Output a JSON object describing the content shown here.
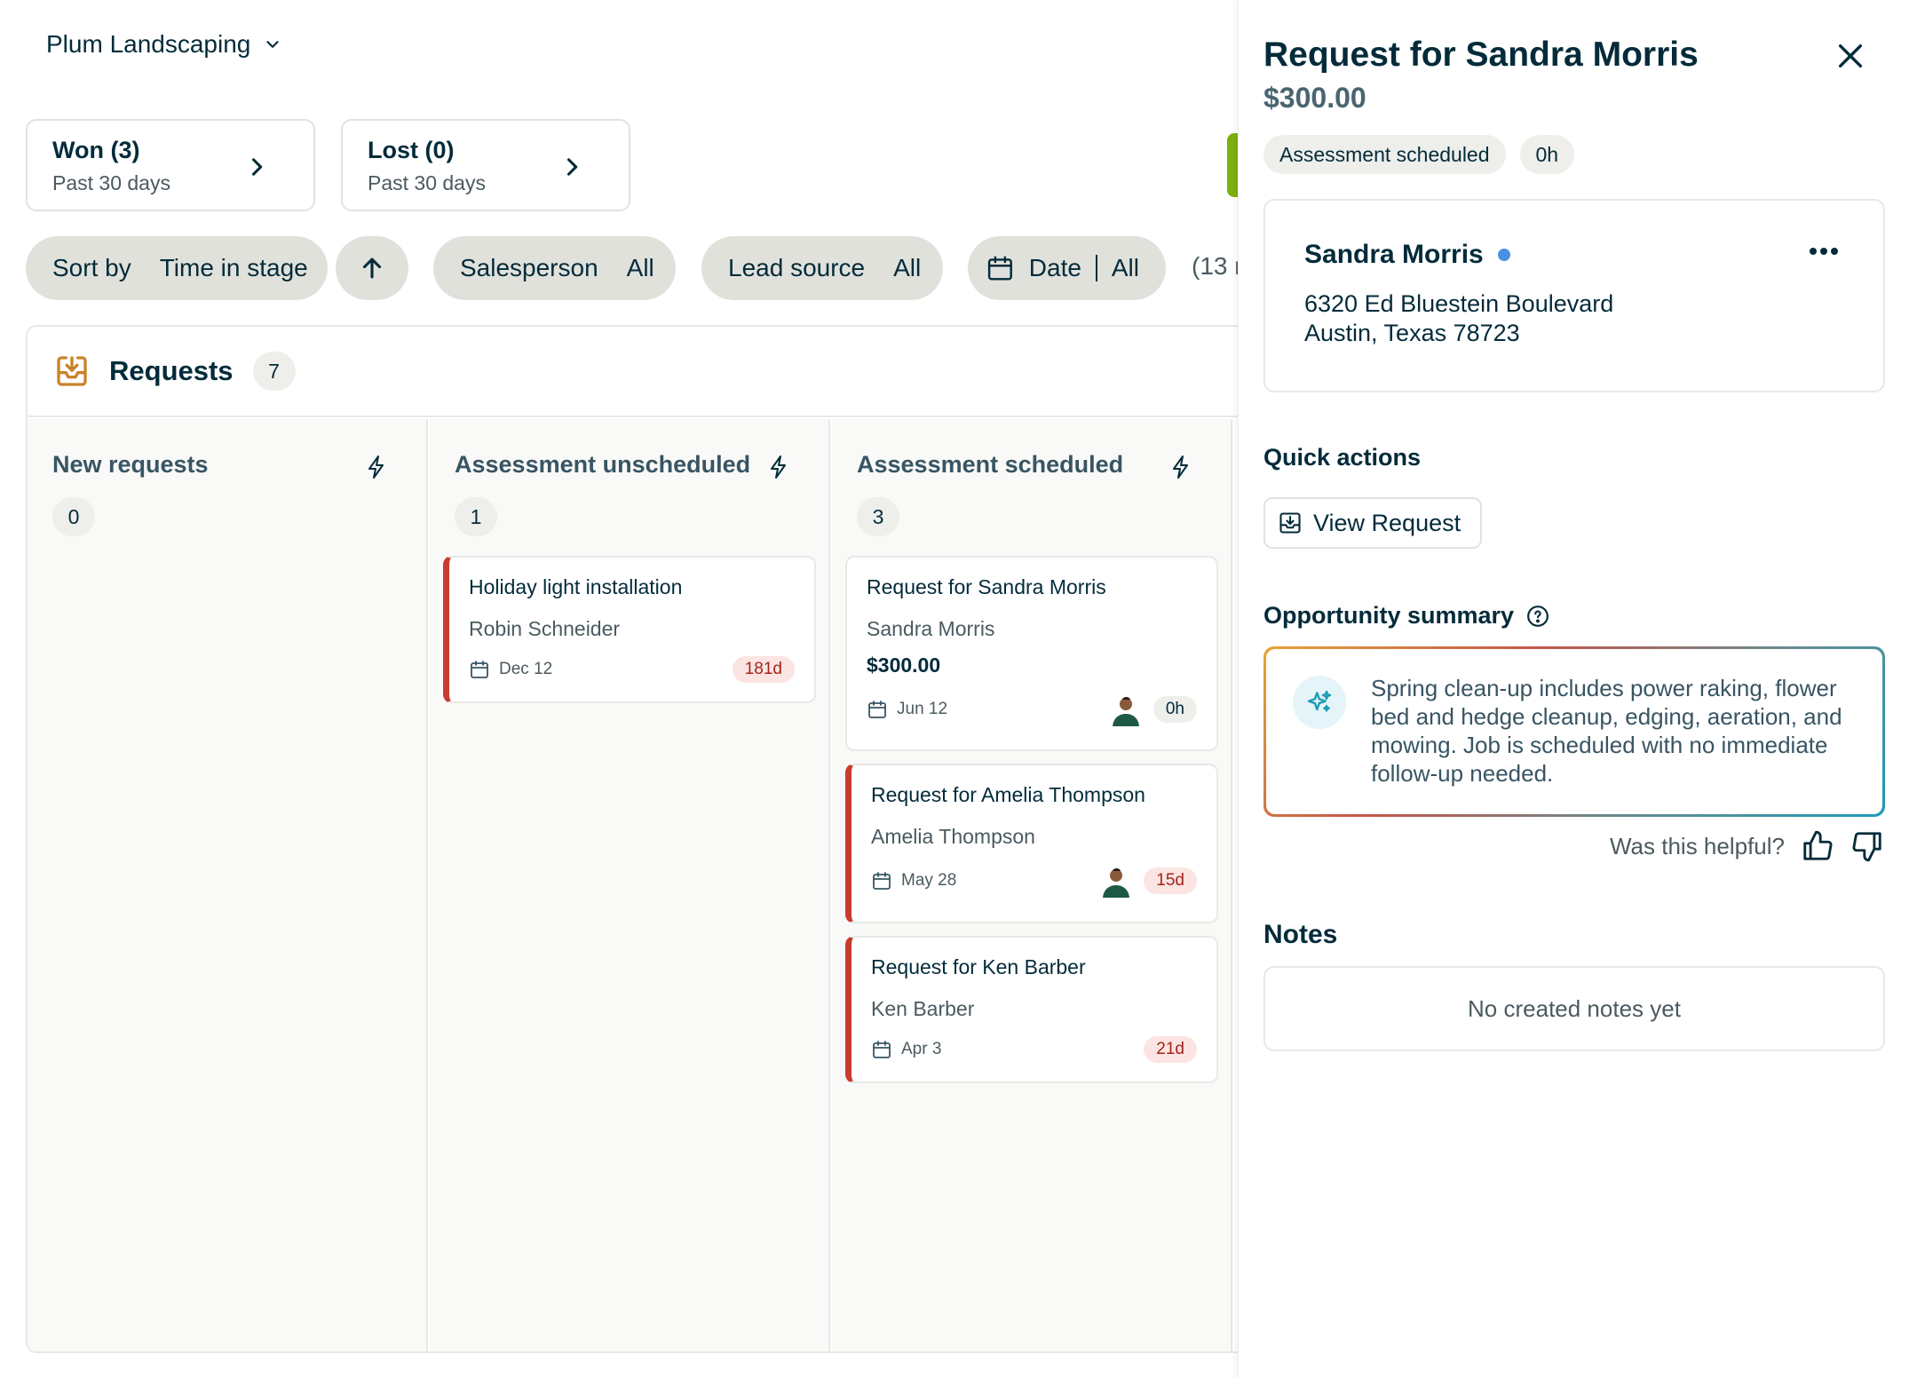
{
  "company": {
    "name": "Plum Landscaping"
  },
  "stats": [
    {
      "title": "Won (3)",
      "subtitle": "Past 30 days"
    },
    {
      "title": "Lost (0)",
      "subtitle": "Past 30 days"
    }
  ],
  "filters": {
    "sort_label": "Sort by",
    "sort_value": "Time in stage",
    "salesperson_label": "Salesperson",
    "salesperson_value": "All",
    "lead_source_label": "Lead source",
    "lead_source_value": "All",
    "date_label": "Date",
    "date_value": "All",
    "result_count_partial": "(13 r"
  },
  "board": {
    "title": "Requests",
    "count": "7",
    "columns": [
      {
        "title": "New requests",
        "count": "0",
        "cards": []
      },
      {
        "title": "Assessment unscheduled",
        "count": "1",
        "cards": [
          {
            "title": "Holiday light installation",
            "name": "Robin Schneider",
            "date": "Dec 12",
            "age": "181d"
          }
        ]
      },
      {
        "title": "Assessment scheduled",
        "count": "3",
        "cards": [
          {
            "title": "Request for Sandra Morris",
            "name": "Sandra Morris",
            "price": "$300.00",
            "date": "Jun 12",
            "age": "0h"
          },
          {
            "title": "Request for Amelia Thompson",
            "name": "Amelia Thompson",
            "date": "May 28",
            "age": "15d"
          },
          {
            "title": "Request for Ken Barber",
            "name": "Ken Barber",
            "date": "Apr 3",
            "age": "21d"
          }
        ]
      }
    ]
  },
  "panel": {
    "title": "Request for Sandra Morris",
    "amount": "$300.00",
    "stage_tag": "Assessment scheduled",
    "time_tag": "0h",
    "client": {
      "name": "Sandra Morris",
      "address_line1": "6320 Ed Bluestein Boulevard",
      "address_line2": "Austin, Texas 78723"
    },
    "quick_actions_title": "Quick actions",
    "view_request_label": "View Request",
    "summary_title": "Opportunity summary",
    "summary_text": "Spring clean-up includes power raking, flower bed and hedge cleanup, edging, aeration, and mowing. Job is scheduled with no immediate follow-up needed.",
    "helpful_label": "Was this helpful?",
    "notes_title": "Notes",
    "notes_empty": "No created notes yet"
  },
  "colors": {
    "text_primary": "#032b3a",
    "warning_accent": "#c83c2f",
    "won_accent": "#7db00e",
    "client_dot": "#4a90e2"
  }
}
